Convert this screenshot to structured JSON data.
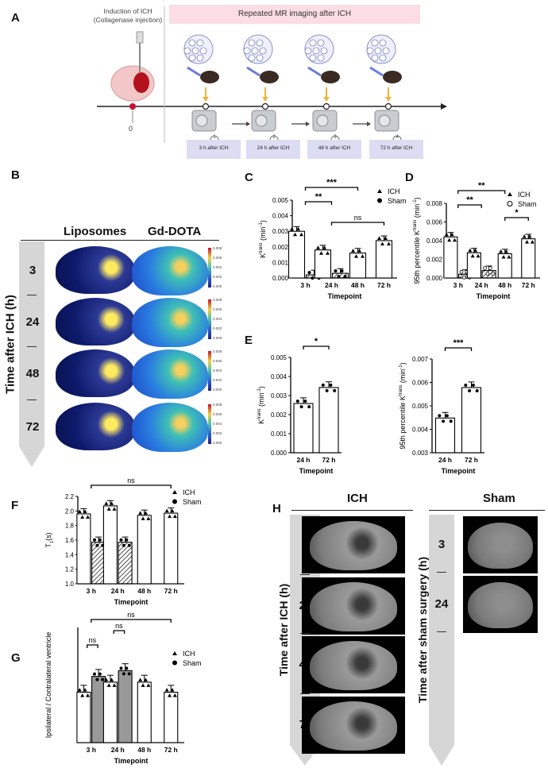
{
  "panel_letters": {
    "a": "A",
    "b": "B",
    "c": "C",
    "d": "D",
    "e": "E",
    "f": "F",
    "g": "G",
    "h": "H"
  },
  "panel_a": {
    "induction_line1": "Induction of ICH",
    "induction_line2": "(Collagenase injection)",
    "banner": "Repeated MR imaging after ICH",
    "zero": "0",
    "steps": [
      {
        "num": "1",
        "label": "3 h after ICH"
      },
      {
        "num": "2",
        "label": "24 h after ICH"
      },
      {
        "num": "3",
        "label": "48 h after ICH"
      },
      {
        "num": "4",
        "label": "72 h after ICH"
      }
    ],
    "gd_token": "Gd",
    "colors": {
      "banner_bg": "#fbdde3",
      "step_bg": "#dcdcf3",
      "arrow": "#f0b43a",
      "marker": "#c8102e"
    }
  },
  "panel_b": {
    "col_liposomes": "Liposomes",
    "col_gd": "Gd-DOTA",
    "axis_label": "Time after ICH (h)",
    "rows": [
      "3",
      "24",
      "48",
      "72"
    ],
    "colorbar_ticks": [
      "0.008",
      "0.006",
      "0.004",
      "0.002",
      "0.000"
    ]
  },
  "chart_data": [
    {
      "id": "C",
      "type": "bar",
      "ylabel_main": "K",
      "ylabel_sup": "trans",
      "ylabel_unit": " (min",
      "ylabel_unit_sup": "-1",
      "ylabel_close": ")",
      "xlabel": "Timepoint",
      "categories": [
        "3 h",
        "24 h",
        "48 h",
        "72 h"
      ],
      "ylim": [
        0,
        0.005
      ],
      "yticks": [
        "0.000",
        "0.001",
        "0.002",
        "0.003",
        "0.004",
        "0.005"
      ],
      "series": [
        {
          "name": "ICH",
          "marker": "triangle",
          "values": [
            0.003,
            0.0018,
            0.0016,
            0.0024
          ]
        },
        {
          "name": "Sham",
          "marker": "circle",
          "values": [
            0.0002,
            0.0003,
            null,
            null
          ]
        }
      ],
      "annotations": [
        "***",
        "**",
        "ns"
      ]
    },
    {
      "id": "D",
      "type": "bar",
      "ylabel_main": "95th percentile K",
      "ylabel_sup": "trans",
      "ylabel_unit": " (min",
      "ylabel_unit_sup": "-1",
      "ylabel_close": ")",
      "xlabel": "Timepoint",
      "categories": [
        "3 h",
        "24 h",
        "48 h",
        "72 h"
      ],
      "ylim": [
        0,
        0.008
      ],
      "yticks": [
        "0.000",
        "0.002",
        "0.004",
        "0.006",
        "0.008"
      ],
      "series": [
        {
          "name": "ICH",
          "marker": "triangle",
          "values": [
            0.0044,
            0.0027,
            0.0026,
            0.0042
          ]
        },
        {
          "name": "Sham",
          "marker": "open-circle",
          "values": [
            0.0004,
            0.0008,
            null,
            null
          ]
        }
      ],
      "annotations": [
        "**",
        "**",
        "*"
      ]
    },
    {
      "id": "E1",
      "type": "bar",
      "ylabel_main": "K",
      "ylabel_sup": "trans",
      "ylabel_unit": " (min",
      "ylabel_unit_sup": "-1",
      "ylabel_close": ")",
      "xlabel": "Timepoint",
      "categories": [
        "24 h",
        "72 h"
      ],
      "ylim": [
        0,
        0.005
      ],
      "yticks": [
        "0.000",
        "0.001",
        "0.002",
        "0.003",
        "0.004",
        "0.005"
      ],
      "series": [
        {
          "name": "",
          "marker": "circle",
          "values": [
            0.00258,
            0.00342
          ]
        }
      ],
      "annotations": [
        "*"
      ]
    },
    {
      "id": "E2",
      "type": "bar",
      "ylabel_main": "95th percentile K",
      "ylabel_sup": "trans",
      "ylabel_unit": " (min",
      "ylabel_unit_sup": "-1",
      "ylabel_close": ")",
      "xlabel": "Timepoint",
      "categories": [
        "24 h",
        "72 h"
      ],
      "ylim": [
        0.003,
        0.007
      ],
      "yticks": [
        "0.003",
        "0.004",
        "0.005",
        "0.006",
        "0.007"
      ],
      "series": [
        {
          "name": "",
          "marker": "circle",
          "values": [
            0.00448,
            0.00578
          ]
        }
      ],
      "annotations": [
        "***"
      ]
    },
    {
      "id": "F",
      "type": "bar",
      "ylabel_main": "T",
      "ylabel_sub": "1",
      "ylabel_unit": "(s)",
      "xlabel": "Timepoint",
      "categories": [
        "3 h",
        "24 h",
        "48 h",
        "72 h"
      ],
      "ylim": [
        1.0,
        2.2
      ],
      "yticks": [
        "1.0",
        "1.2",
        "1.4",
        "1.6",
        "1.8",
        "2.0",
        "2.2"
      ],
      "series": [
        {
          "name": "ICH",
          "marker": "triangle",
          "values": [
            1.96,
            2.07,
            1.94,
            1.97
          ]
        },
        {
          "name": "Sham",
          "marker": "circle",
          "values": [
            1.57,
            1.57,
            null,
            null
          ]
        }
      ],
      "annotations": [
        "ns"
      ]
    },
    {
      "id": "G",
      "type": "bar",
      "ylabel_main": "Ipsilateral / Contralateral ventricle",
      "xlabel": "Timepoint",
      "categories": [
        "3 h",
        "24 h",
        "48 h",
        "72 h"
      ],
      "ylim": [
        0,
        1.6
      ],
      "yticks": [],
      "series": [
        {
          "name": "ICH",
          "marker": "triangle",
          "values": [
            0.7,
            0.84,
            0.84,
            0.7
          ]
        },
        {
          "name": "Sham",
          "marker": "circle",
          "values": [
            0.92,
            1.0,
            null,
            null
          ]
        }
      ],
      "annotations": [
        "ns",
        "ns",
        "ns"
      ]
    }
  ],
  "panel_h": {
    "ich_title": "ICH",
    "sham_title": "Sham",
    "ich_axis": "Time after ICH (h)",
    "sham_axis": "Time after sham surgery (h)",
    "ich_rows": [
      "3",
      "24",
      "48",
      "72"
    ],
    "sham_rows": [
      "3",
      "24"
    ]
  }
}
